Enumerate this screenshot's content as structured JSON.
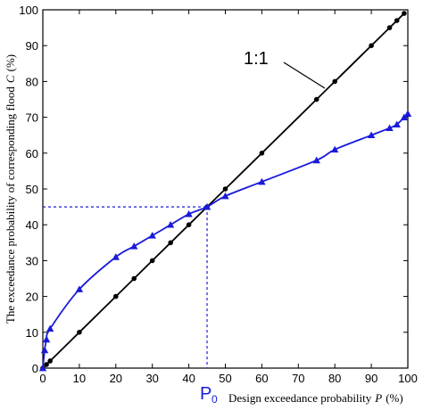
{
  "chart_data": {
    "type": "line",
    "title": "",
    "xlabel": "Design exceedance probability",
    "xlabel_var": "P",
    "xlabel_unit": "(%)",
    "ylabel": "The exceedance probability of corresponding  flood",
    "ylabel_var": "C",
    "ylabel_unit": "(%)",
    "xlim": [
      0,
      100
    ],
    "ylim": [
      0,
      100
    ],
    "xticks": [
      0,
      10,
      20,
      30,
      40,
      50,
      60,
      70,
      80,
      90,
      100
    ],
    "yticks": [
      0,
      10,
      20,
      30,
      40,
      50,
      60,
      70,
      80,
      90,
      100
    ],
    "grid": false,
    "series": [
      {
        "name": "",
        "color": "#000000",
        "marker": "circle",
        "x": [
          0,
          1,
          2,
          10,
          20,
          25,
          30,
          35,
          40,
          45,
          50,
          60,
          75,
          80,
          90,
          95,
          97,
          99
        ],
        "y": [
          0,
          1,
          2,
          10,
          20,
          25,
          30,
          35,
          40,
          45,
          50,
          60,
          75,
          80,
          90,
          95,
          97,
          99
        ]
      },
      {
        "name": "",
        "color": "#1a1adb",
        "marker": "triangle",
        "x": [
          0,
          0.5,
          1,
          2,
          10,
          20,
          25,
          30,
          35,
          40,
          45,
          50,
          60,
          75,
          80,
          90,
          95,
          97,
          99,
          100
        ],
        "y": [
          0,
          5,
          8,
          11,
          22,
          31,
          34,
          37,
          40,
          43,
          45,
          48,
          52,
          58,
          61,
          65,
          67,
          68,
          70,
          71
        ]
      }
    ],
    "annotations": [
      {
        "text": "1:1"
      },
      {
        "text": "P",
        "subscript": "0",
        "x": 45,
        "y": 45,
        "color": "#1a1adb"
      }
    ]
  }
}
